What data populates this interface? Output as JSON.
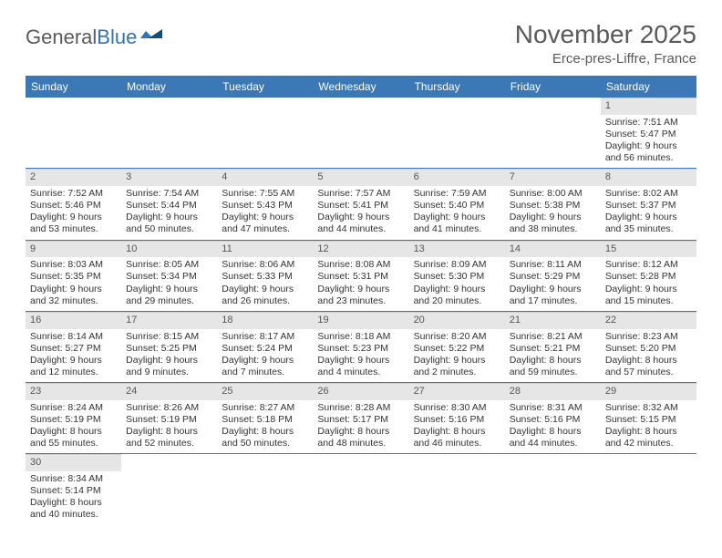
{
  "logo": {
    "text1": "General",
    "text2": "Blue"
  },
  "title": "November 2025",
  "location": "Erce-pres-Liffre, France",
  "colors": {
    "header_bg": "#3b78b5",
    "header_text": "#ffffff",
    "daynum_bg": "#e6e6e6",
    "row_border": "#3b78b5",
    "text": "#333333",
    "title_text": "#5a5a5a"
  },
  "day_names": [
    "Sunday",
    "Monday",
    "Tuesday",
    "Wednesday",
    "Thursday",
    "Friday",
    "Saturday"
  ],
  "weeks": [
    [
      {
        "n": null
      },
      {
        "n": null
      },
      {
        "n": null
      },
      {
        "n": null
      },
      {
        "n": null
      },
      {
        "n": null
      },
      {
        "n": 1,
        "sunrise": "7:51 AM",
        "sunset": "5:47 PM",
        "dl_h": 9,
        "dl_m": 56
      }
    ],
    [
      {
        "n": 2,
        "sunrise": "7:52 AM",
        "sunset": "5:46 PM",
        "dl_h": 9,
        "dl_m": 53
      },
      {
        "n": 3,
        "sunrise": "7:54 AM",
        "sunset": "5:44 PM",
        "dl_h": 9,
        "dl_m": 50
      },
      {
        "n": 4,
        "sunrise": "7:55 AM",
        "sunset": "5:43 PM",
        "dl_h": 9,
        "dl_m": 47
      },
      {
        "n": 5,
        "sunrise": "7:57 AM",
        "sunset": "5:41 PM",
        "dl_h": 9,
        "dl_m": 44
      },
      {
        "n": 6,
        "sunrise": "7:59 AM",
        "sunset": "5:40 PM",
        "dl_h": 9,
        "dl_m": 41
      },
      {
        "n": 7,
        "sunrise": "8:00 AM",
        "sunset": "5:38 PM",
        "dl_h": 9,
        "dl_m": 38
      },
      {
        "n": 8,
        "sunrise": "8:02 AM",
        "sunset": "5:37 PM",
        "dl_h": 9,
        "dl_m": 35
      }
    ],
    [
      {
        "n": 9,
        "sunrise": "8:03 AM",
        "sunset": "5:35 PM",
        "dl_h": 9,
        "dl_m": 32
      },
      {
        "n": 10,
        "sunrise": "8:05 AM",
        "sunset": "5:34 PM",
        "dl_h": 9,
        "dl_m": 29
      },
      {
        "n": 11,
        "sunrise": "8:06 AM",
        "sunset": "5:33 PM",
        "dl_h": 9,
        "dl_m": 26
      },
      {
        "n": 12,
        "sunrise": "8:08 AM",
        "sunset": "5:31 PM",
        "dl_h": 9,
        "dl_m": 23
      },
      {
        "n": 13,
        "sunrise": "8:09 AM",
        "sunset": "5:30 PM",
        "dl_h": 9,
        "dl_m": 20
      },
      {
        "n": 14,
        "sunrise": "8:11 AM",
        "sunset": "5:29 PM",
        "dl_h": 9,
        "dl_m": 17
      },
      {
        "n": 15,
        "sunrise": "8:12 AM",
        "sunset": "5:28 PM",
        "dl_h": 9,
        "dl_m": 15
      }
    ],
    [
      {
        "n": 16,
        "sunrise": "8:14 AM",
        "sunset": "5:27 PM",
        "dl_h": 9,
        "dl_m": 12
      },
      {
        "n": 17,
        "sunrise": "8:15 AM",
        "sunset": "5:25 PM",
        "dl_h": 9,
        "dl_m": 9
      },
      {
        "n": 18,
        "sunrise": "8:17 AM",
        "sunset": "5:24 PM",
        "dl_h": 9,
        "dl_m": 7
      },
      {
        "n": 19,
        "sunrise": "8:18 AM",
        "sunset": "5:23 PM",
        "dl_h": 9,
        "dl_m": 4
      },
      {
        "n": 20,
        "sunrise": "8:20 AM",
        "sunset": "5:22 PM",
        "dl_h": 9,
        "dl_m": 2
      },
      {
        "n": 21,
        "sunrise": "8:21 AM",
        "sunset": "5:21 PM",
        "dl_h": 8,
        "dl_m": 59
      },
      {
        "n": 22,
        "sunrise": "8:23 AM",
        "sunset": "5:20 PM",
        "dl_h": 8,
        "dl_m": 57
      }
    ],
    [
      {
        "n": 23,
        "sunrise": "8:24 AM",
        "sunset": "5:19 PM",
        "dl_h": 8,
        "dl_m": 55
      },
      {
        "n": 24,
        "sunrise": "8:26 AM",
        "sunset": "5:19 PM",
        "dl_h": 8,
        "dl_m": 52
      },
      {
        "n": 25,
        "sunrise": "8:27 AM",
        "sunset": "5:18 PM",
        "dl_h": 8,
        "dl_m": 50
      },
      {
        "n": 26,
        "sunrise": "8:28 AM",
        "sunset": "5:17 PM",
        "dl_h": 8,
        "dl_m": 48
      },
      {
        "n": 27,
        "sunrise": "8:30 AM",
        "sunset": "5:16 PM",
        "dl_h": 8,
        "dl_m": 46
      },
      {
        "n": 28,
        "sunrise": "8:31 AM",
        "sunset": "5:16 PM",
        "dl_h": 8,
        "dl_m": 44
      },
      {
        "n": 29,
        "sunrise": "8:32 AM",
        "sunset": "5:15 PM",
        "dl_h": 8,
        "dl_m": 42
      }
    ],
    [
      {
        "n": 30,
        "sunrise": "8:34 AM",
        "sunset": "5:14 PM",
        "dl_h": 8,
        "dl_m": 40
      },
      {
        "n": null
      },
      {
        "n": null
      },
      {
        "n": null
      },
      {
        "n": null
      },
      {
        "n": null
      },
      {
        "n": null
      }
    ]
  ]
}
